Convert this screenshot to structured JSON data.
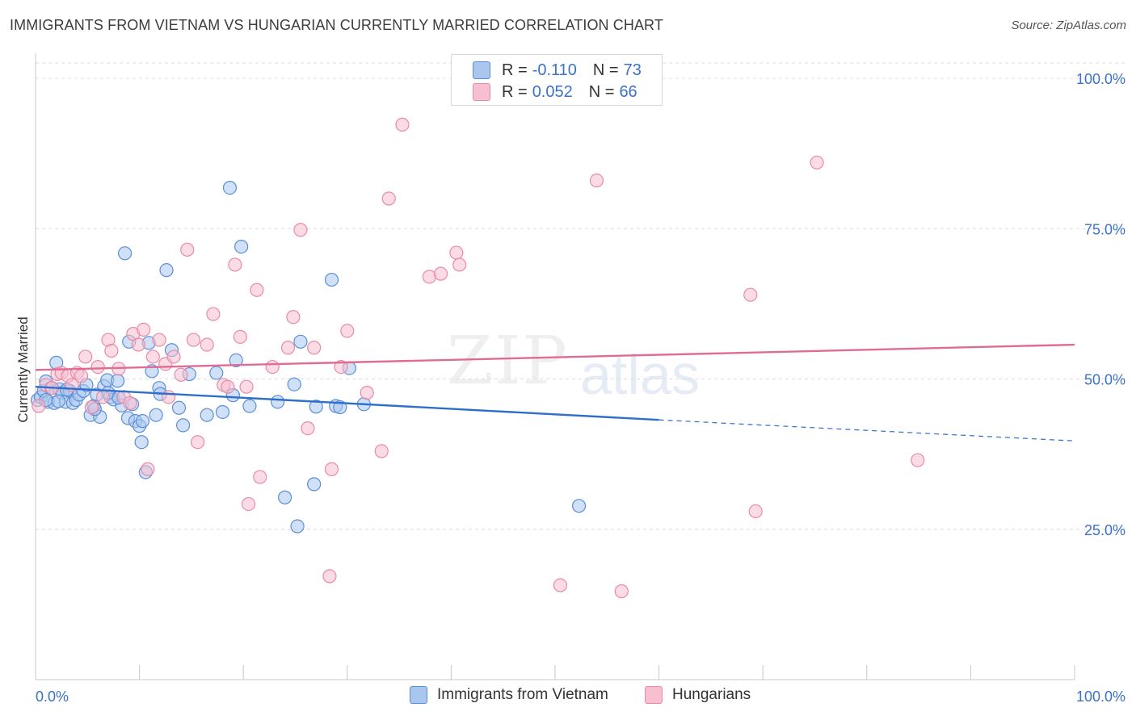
{
  "header": {
    "title": "IMMIGRANTS FROM VIETNAM VS HUNGARIAN CURRENTLY MARRIED CORRELATION CHART",
    "source": "Source: ZipAtlas.com"
  },
  "watermark": {
    "zip": "ZIP",
    "atlas": "atlas"
  },
  "legend": {
    "rows": [
      {
        "r_label": "R = ",
        "r_value": "-0.110",
        "n_label": "N = ",
        "n_value": "73",
        "color": "#a9c6ef"
      },
      {
        "r_label": "R = ",
        "r_value": "0.052",
        "n_label": "N = ",
        "n_value": "66",
        "color": "#f7bfd0"
      }
    ]
  },
  "bottom_legend": {
    "vietnam": "Immigrants from Vietnam",
    "hungarians": "Hungarians"
  },
  "colors": {
    "vietnam_fill": "#a9c6ef",
    "vietnam_stroke": "#5b8fd6",
    "vietnam_line": "#2e6fcc",
    "hungarian_fill": "#f7bfd0",
    "hungarian_stroke": "#e88aa8",
    "hungarian_line": "#e06b93",
    "tick_label": "#3b72c9",
    "grid": "#dcdcdc"
  },
  "chart_data": {
    "type": "scatter",
    "title": "IMMIGRANTS FROM VIETNAM VS HUNGARIAN CURRENTLY MARRIED CORRELATION CHART",
    "xlabel": "",
    "ylabel": "Currently Married",
    "xlim": [
      0,
      100
    ],
    "ylim": [
      0,
      105
    ],
    "x_tick_labels": [
      "0.0%",
      "100.0%"
    ],
    "y_ticks": [
      {
        "value": 25,
        "label": "25.0%"
      },
      {
        "value": 50,
        "label": "50.0%"
      },
      {
        "value": 75,
        "label": "75.0%"
      },
      {
        "value": 100,
        "label": "100.0%"
      }
    ],
    "grid": true,
    "legend_position": "top-center",
    "series": [
      {
        "name": "Immigrants from Vietnam",
        "stats": {
          "R": -0.11,
          "N": 73
        },
        "trend": {
          "x0": 0,
          "y0": 48.7,
          "x1": 60,
          "y1": 43.2,
          "dashed_to_x": 100,
          "dashed_to_y": 39.7
        },
        "points": [
          [
            0.2,
            46.5
          ],
          [
            0.5,
            47.0
          ],
          [
            0.8,
            48.0
          ],
          [
            1.0,
            49.6
          ],
          [
            1.2,
            46.2
          ],
          [
            1.5,
            48.5
          ],
          [
            1.8,
            46.0
          ],
          [
            2.0,
            52.7
          ],
          [
            2.3,
            48.3
          ],
          [
            2.6,
            47.7
          ],
          [
            2.9,
            46.2
          ],
          [
            3.3,
            48.0
          ],
          [
            3.6,
            46.0
          ],
          [
            3.9,
            46.5
          ],
          [
            4.2,
            47.4
          ],
          [
            4.6,
            48.0
          ],
          [
            4.9,
            49.0
          ],
          [
            5.3,
            44.0
          ],
          [
            5.6,
            45.5
          ],
          [
            5.9,
            47.4
          ],
          [
            6.2,
            43.7
          ],
          [
            6.6,
            48.8
          ],
          [
            6.9,
            49.8
          ],
          [
            7.2,
            47.0
          ],
          [
            7.5,
            46.6
          ],
          [
            7.9,
            49.7
          ],
          [
            8.3,
            45.6
          ],
          [
            8.6,
            70.9
          ],
          [
            8.9,
            43.5
          ],
          [
            9.0,
            56.2
          ],
          [
            9.3,
            45.8
          ],
          [
            9.6,
            43.0
          ],
          [
            10.0,
            42.2
          ],
          [
            10.3,
            43.0
          ],
          [
            10.6,
            34.5
          ],
          [
            10.9,
            56.0
          ],
          [
            11.2,
            51.3
          ],
          [
            11.6,
            44.0
          ],
          [
            11.9,
            48.5
          ],
          [
            12.6,
            68.1
          ],
          [
            13.1,
            54.8
          ],
          [
            13.8,
            45.2
          ],
          [
            14.2,
            42.3
          ],
          [
            14.8,
            50.8
          ],
          [
            16.5,
            44.0
          ],
          [
            17.4,
            51.0
          ],
          [
            18.0,
            44.5
          ],
          [
            18.7,
            81.8
          ],
          [
            19.0,
            47.3
          ],
          [
            19.3,
            53.1
          ],
          [
            19.8,
            72.0
          ],
          [
            20.6,
            45.5
          ],
          [
            23.3,
            46.2
          ],
          [
            24.0,
            30.3
          ],
          [
            24.9,
            49.1
          ],
          [
            25.2,
            25.5
          ],
          [
            25.5,
            56.2
          ],
          [
            27.0,
            45.4
          ],
          [
            26.8,
            32.5
          ],
          [
            28.5,
            66.5
          ],
          [
            28.9,
            45.5
          ],
          [
            29.3,
            45.3
          ],
          [
            30.2,
            51.8
          ],
          [
            31.6,
            45.8
          ],
          [
            52.3,
            28.9
          ],
          [
            1.0,
            46.5
          ],
          [
            10.2,
            39.5
          ],
          [
            12.0,
            47.5
          ],
          [
            5.7,
            45.0
          ],
          [
            2.2,
            46.3
          ],
          [
            7.0,
            47.7
          ],
          [
            8.0,
            46.9
          ],
          [
            3.0,
            48.2
          ]
        ]
      },
      {
        "name": "Hungarians",
        "stats": {
          "R": 0.052,
          "N": 66
        },
        "trend": {
          "x0": 0,
          "y0": 51.5,
          "x1": 100,
          "y1": 55.7
        },
        "points": [
          [
            0.3,
            45.5
          ],
          [
            1.0,
            49.0
          ],
          [
            1.6,
            48.5
          ],
          [
            2.1,
            50.8
          ],
          [
            2.5,
            51.0
          ],
          [
            3.1,
            50.5
          ],
          [
            3.5,
            49.0
          ],
          [
            4.0,
            51.0
          ],
          [
            4.4,
            50.5
          ],
          [
            4.8,
            53.7
          ],
          [
            5.4,
            45.3
          ],
          [
            6.0,
            52.0
          ],
          [
            6.5,
            47.0
          ],
          [
            7.0,
            56.5
          ],
          [
            7.3,
            54.7
          ],
          [
            8.0,
            51.7
          ],
          [
            8.5,
            47.0
          ],
          [
            9.1,
            46.0
          ],
          [
            9.4,
            57.5
          ],
          [
            9.9,
            55.7
          ],
          [
            10.4,
            58.2
          ],
          [
            10.8,
            35.0
          ],
          [
            11.3,
            53.7
          ],
          [
            11.9,
            56.5
          ],
          [
            12.5,
            52.5
          ],
          [
            12.8,
            47.0
          ],
          [
            13.3,
            53.7
          ],
          [
            14.0,
            50.7
          ],
          [
            14.6,
            71.5
          ],
          [
            15.2,
            56.5
          ],
          [
            15.6,
            39.5
          ],
          [
            16.5,
            55.7
          ],
          [
            17.1,
            60.8
          ],
          [
            18.1,
            49.0
          ],
          [
            18.5,
            48.7
          ],
          [
            19.2,
            69.0
          ],
          [
            19.7,
            57.0
          ],
          [
            20.3,
            48.7
          ],
          [
            21.3,
            64.8
          ],
          [
            21.6,
            33.7
          ],
          [
            20.5,
            29.2
          ],
          [
            22.8,
            52.0
          ],
          [
            24.3,
            55.2
          ],
          [
            24.8,
            60.3
          ],
          [
            25.5,
            74.8
          ],
          [
            26.2,
            41.8
          ],
          [
            26.8,
            55.2
          ],
          [
            28.3,
            17.2
          ],
          [
            28.5,
            35.0
          ],
          [
            29.4,
            52.0
          ],
          [
            30.0,
            58.0
          ],
          [
            31.9,
            47.7
          ],
          [
            33.3,
            38.0
          ],
          [
            34.0,
            80.0
          ],
          [
            35.3,
            92.3
          ],
          [
            37.9,
            67.0
          ],
          [
            39.0,
            67.5
          ],
          [
            40.5,
            71.0
          ],
          [
            40.8,
            69.0
          ],
          [
            50.5,
            15.7
          ],
          [
            54.0,
            83.0
          ],
          [
            56.4,
            14.7
          ],
          [
            68.8,
            64.0
          ],
          [
            69.3,
            28.0
          ],
          [
            75.2,
            86.0
          ],
          [
            84.9,
            36.5
          ]
        ]
      }
    ]
  }
}
